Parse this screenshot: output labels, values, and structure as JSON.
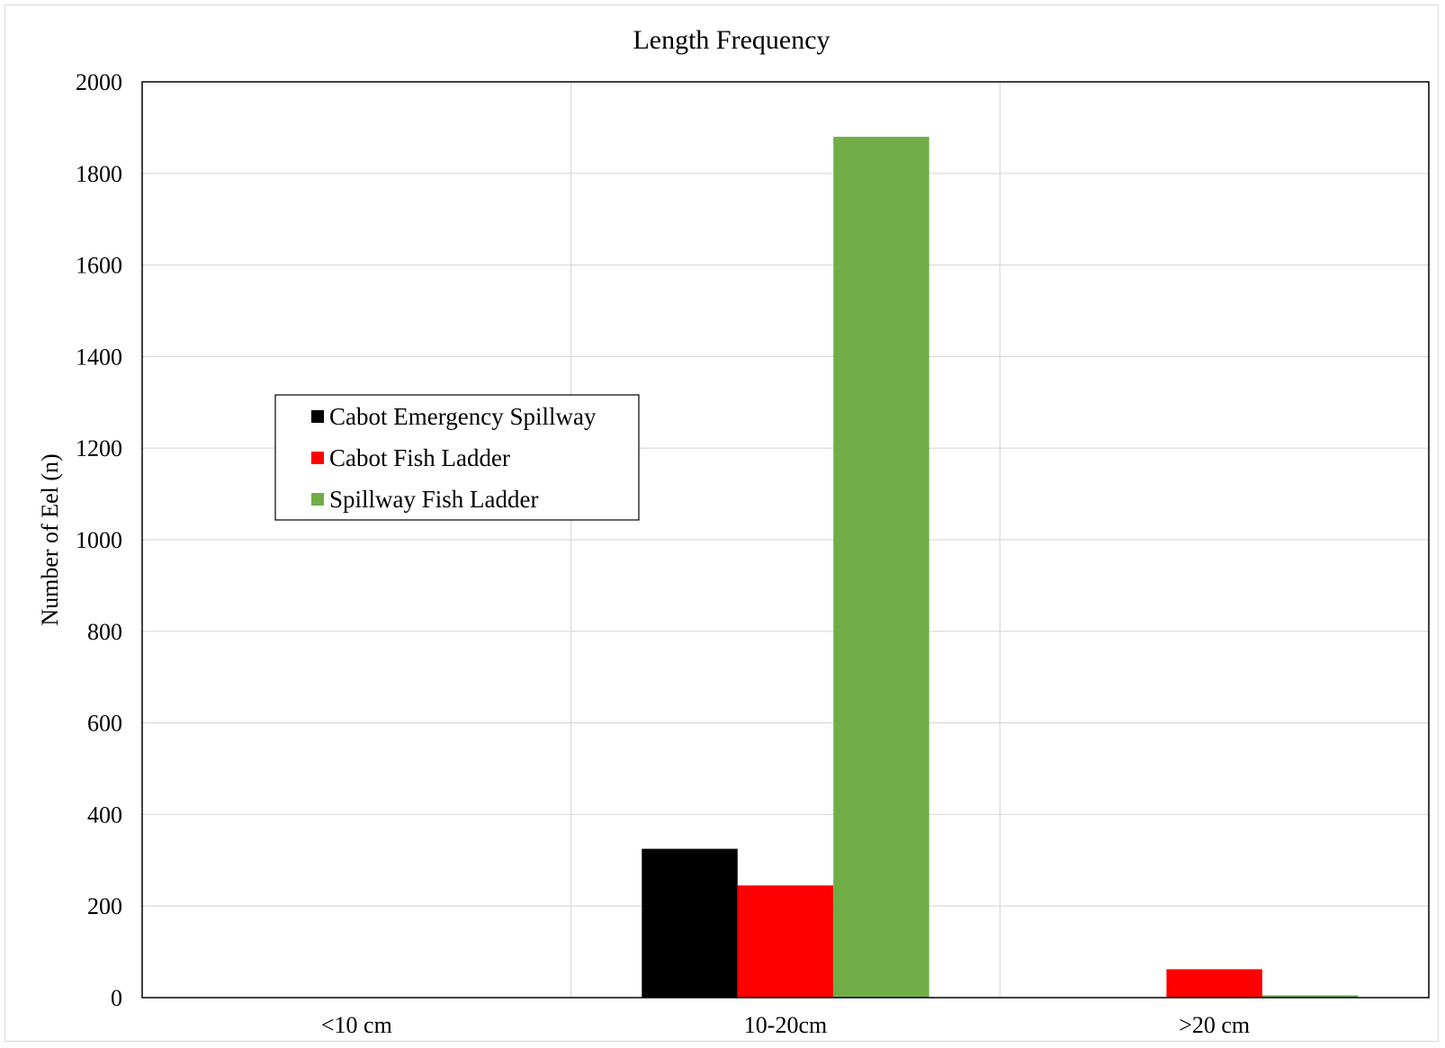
{
  "chart_data": {
    "type": "bar",
    "title": "Length Frequency",
    "xlabel": "",
    "ylabel": "Number of Eel (n)",
    "categories": [
      "<10 cm",
      "10-20cm",
      ">20 cm"
    ],
    "ylim": [
      0,
      2000
    ],
    "yticks": [
      0,
      200,
      400,
      600,
      800,
      1000,
      1200,
      1400,
      1600,
      1800,
      2000
    ],
    "grid": true,
    "legend_position": "center-left",
    "series": [
      {
        "name": "Cabot Emergency Spillway",
        "color": "#000000",
        "values": [
          0,
          325,
          0
        ]
      },
      {
        "name": "Cabot Fish Ladder",
        "color": "#ff0000",
        "values": [
          0,
          245,
          62
        ]
      },
      {
        "name": "Spillway Fish Ladder",
        "color": "#70ad47",
        "values": [
          0,
          1880,
          5
        ]
      }
    ]
  }
}
